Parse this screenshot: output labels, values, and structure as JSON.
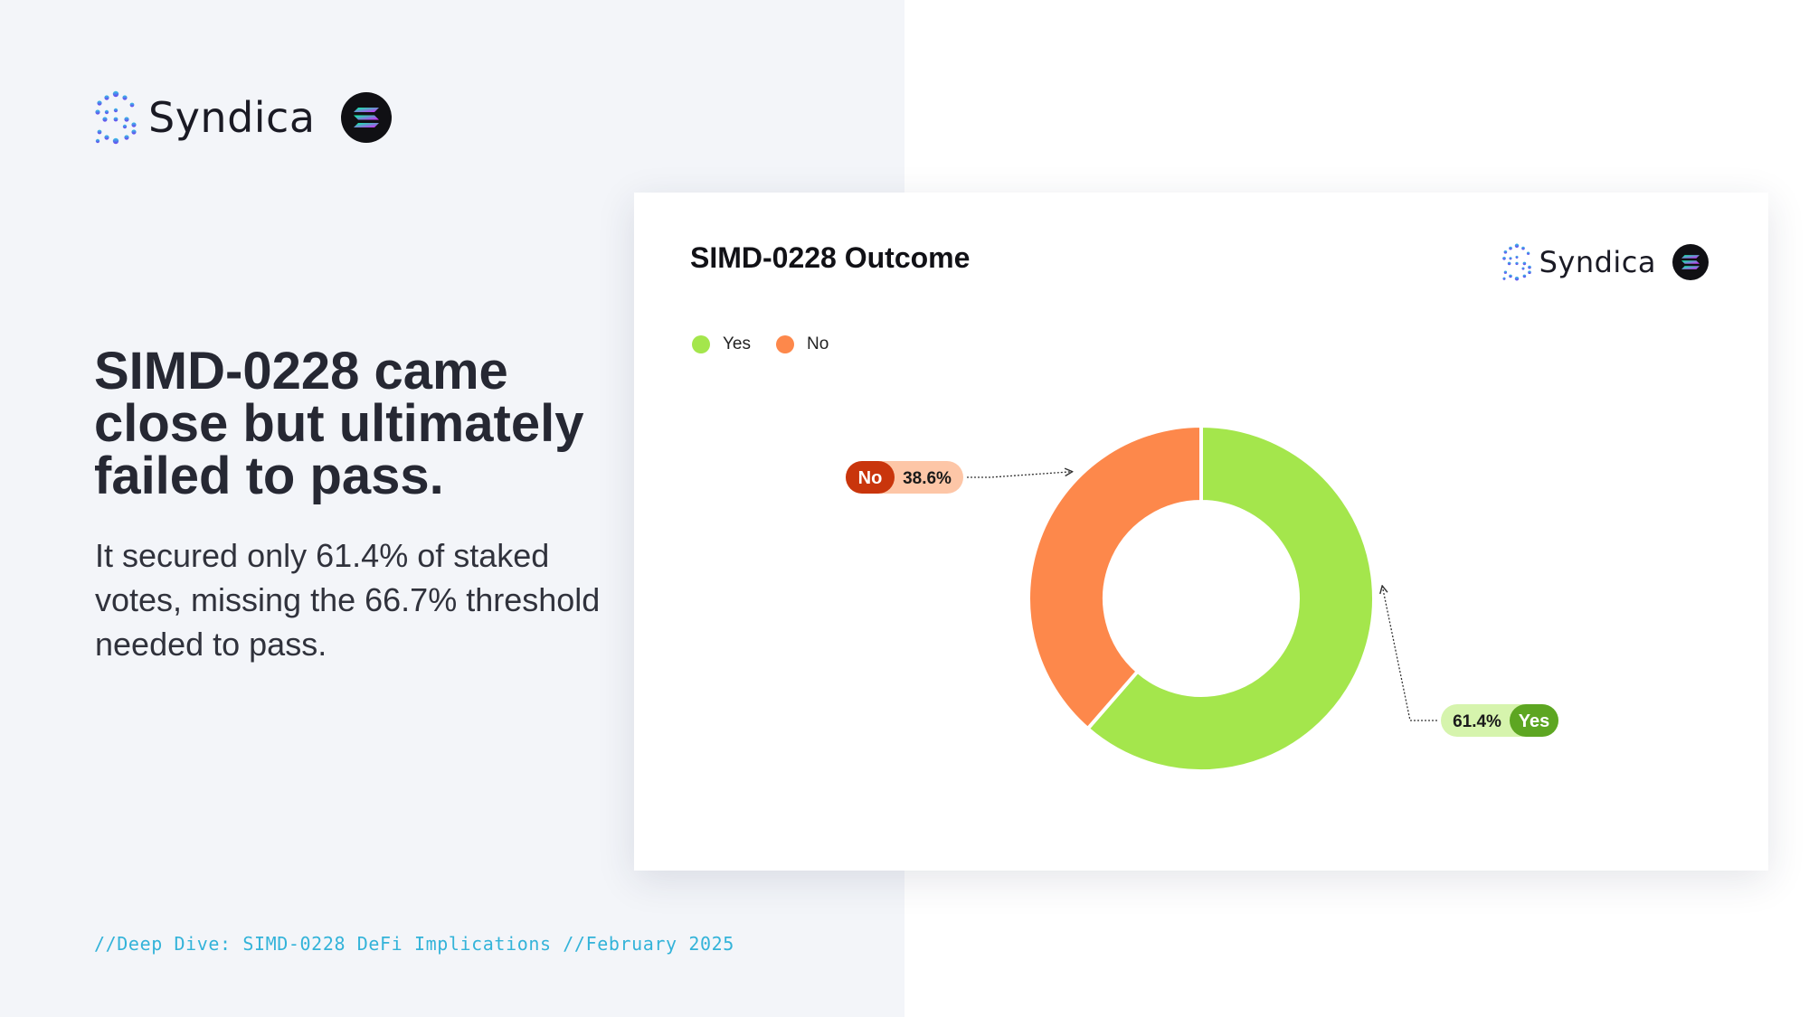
{
  "brand": {
    "name": "Syndica",
    "primary_color": "#4a5cff",
    "accent_color": "#33b3d9"
  },
  "headline": "SIMD-0228 came close but ultimately failed to pass.",
  "subtext": "It secured only 61.4% of staked votes, missing the 66.7% threshold needed to pass.",
  "footer": "//Deep Dive: SIMD-0228 DeFi Implications //February 2025",
  "chart_data": {
    "type": "pie",
    "style": "donut",
    "title": "SIMD-0228 Outcome",
    "categories": [
      "Yes",
      "No"
    ],
    "values": [
      61.4,
      38.6
    ],
    "colors": [
      "#a4e64c",
      "#fd884b"
    ],
    "legend": "top-left",
    "data_labels": [
      {
        "category": "Yes",
        "value_label": "61.4%",
        "text": "Yes",
        "pill_light": "#d6f4ad",
        "pill_dark": "#5da622"
      },
      {
        "category": "No",
        "value_label": "38.6%",
        "text": "No",
        "pill_light": "#fdc6a7",
        "pill_dark": "#c9350c"
      }
    ]
  }
}
